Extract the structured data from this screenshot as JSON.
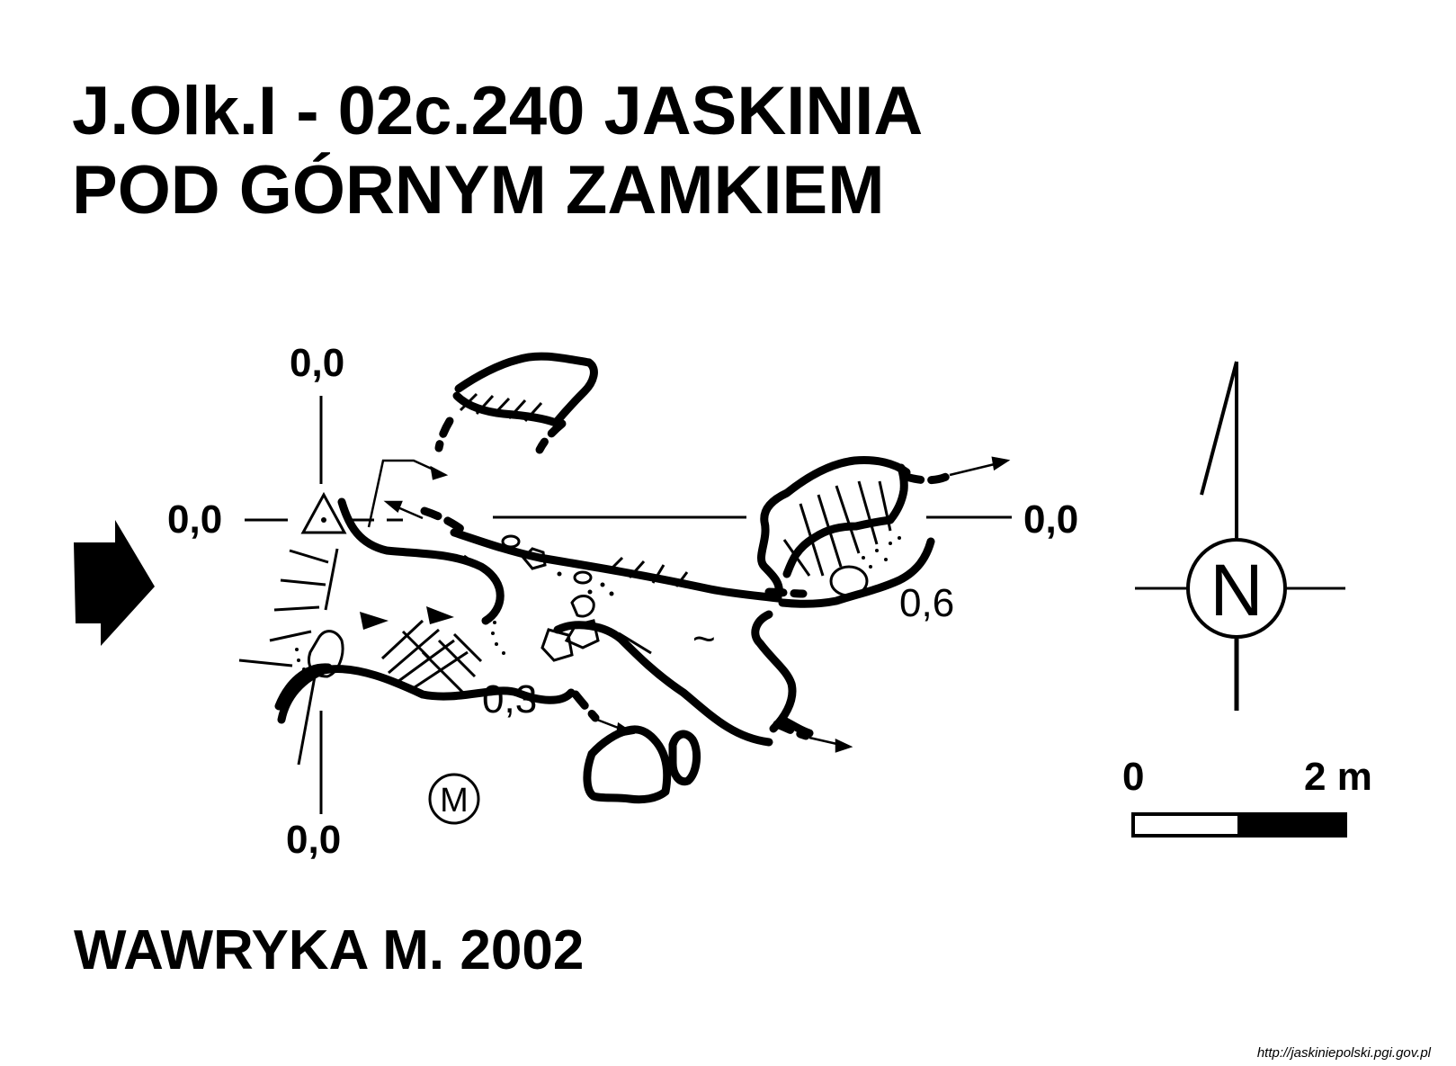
{
  "title": {
    "line1": "J.Olk.I - 02c.240  JASKINIA",
    "line2": "POD GÓRNYM ZAMKIEM"
  },
  "author": "WAWRYKA M. 2002",
  "source": "http://jaskiniepolski.pgi.gov.pl",
  "reference_labels": {
    "top": "0,0",
    "left": "0,0",
    "right": "0,0",
    "bottom": "0,0"
  },
  "depth_labels": {
    "east": "0,6",
    "south": "0,3"
  },
  "symbols": {
    "north": "N",
    "mineral_marker": "M",
    "water_sign": "~"
  },
  "scale": {
    "start": "0",
    "end": "2 m"
  },
  "icons": {
    "entrance": "arrow-right-icon",
    "survey_point": "triangle-icon",
    "compass": "north-arrow-icon"
  }
}
